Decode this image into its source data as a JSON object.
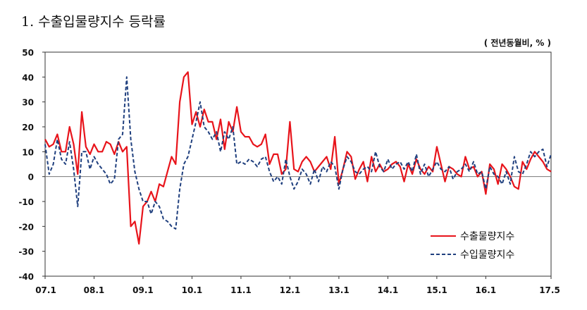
{
  "title": "1. 수출입물량지수 등락률",
  "unit_label": "( 전년동월비, % )",
  "chart_data": {
    "type": "line",
    "title": "1. 수출입물량지수 등락률",
    "unit": "( 전년동월비, % )",
    "xlabel": "",
    "ylabel": "",
    "ylim": [
      -40,
      50
    ],
    "y_ticks": [
      50,
      40,
      30,
      20,
      10,
      0,
      -10,
      -20,
      -30,
      -40
    ],
    "x_tick_labels": [
      "07.1",
      "08.1",
      "09.1",
      "10.1",
      "11.1",
      "12.1",
      "13.1",
      "14.1",
      "15.1",
      "16.1",
      "17.5"
    ],
    "x_tick_index": [
      0,
      12,
      24,
      36,
      48,
      60,
      72,
      84,
      96,
      108,
      124
    ],
    "x_start": "2007-01",
    "x_end": "2017-05",
    "grid": false,
    "legend_position": "bottom-right",
    "series": [
      {
        "name": "수출물량지수",
        "color": "#e8141b",
        "dash": "solid",
        "values": [
          15,
          12,
          13,
          17,
          10,
          10,
          20,
          13,
          1,
          26,
          12,
          9,
          13,
          10,
          10,
          14,
          13,
          9,
          14,
          10,
          12,
          -20,
          -18,
          -27,
          -12,
          -10,
          -6,
          -10,
          -3,
          -4,
          2,
          8,
          5,
          30,
          40,
          42,
          21,
          26,
          20,
          27,
          22,
          22,
          15,
          23,
          11,
          22,
          18,
          28,
          18,
          16,
          16,
          13,
          12,
          13,
          17,
          5,
          9,
          9,
          1,
          3,
          22,
          3,
          2,
          6,
          8,
          6,
          2,
          4,
          6,
          8,
          3,
          16,
          -3,
          3,
          10,
          8,
          -1,
          3,
          6,
          -2,
          8,
          2,
          5,
          2,
          3,
          5,
          6,
          4,
          -2,
          5,
          1,
          7,
          3,
          1,
          4,
          2,
          12,
          5,
          -2,
          4,
          3,
          1,
          0,
          8,
          3,
          4,
          0,
          2,
          -7,
          5,
          3,
          -3,
          5,
          3,
          0,
          -4,
          -5,
          6,
          3,
          7,
          10,
          8,
          6,
          3,
          2
        ]
      },
      {
        "name": "수입물량지수",
        "color": "#1f3f7e",
        "dash": "dashed",
        "values": [
          13,
          1,
          5,
          15,
          7,
          5,
          14,
          3,
          -12,
          10,
          10,
          3,
          8,
          5,
          3,
          1,
          -3,
          -1,
          15,
          17,
          40,
          15,
          2,
          -5,
          -10,
          -10,
          -15,
          -10,
          -12,
          -17,
          -18,
          -20,
          -21,
          -5,
          5,
          8,
          15,
          22,
          30,
          20,
          18,
          15,
          18,
          10,
          18,
          15,
          20,
          5,
          6,
          5,
          7,
          6,
          4,
          7,
          8,
          2,
          -2,
          0,
          -3,
          7,
          0,
          -5,
          -2,
          3,
          1,
          -3,
          3,
          -2,
          4,
          2,
          6,
          4,
          -5,
          3,
          8,
          6,
          2,
          1,
          3,
          4,
          2,
          10,
          4,
          2,
          7,
          3,
          5,
          6,
          3,
          6,
          2,
          9,
          1,
          5,
          0,
          3,
          6,
          3,
          2,
          4,
          -1,
          2,
          3,
          5,
          2,
          6,
          1,
          2,
          -5,
          4,
          1,
          0,
          -3,
          2,
          -3,
          8,
          2,
          1,
          5,
          10,
          8,
          10,
          11,
          4,
          9
        ]
      }
    ]
  }
}
